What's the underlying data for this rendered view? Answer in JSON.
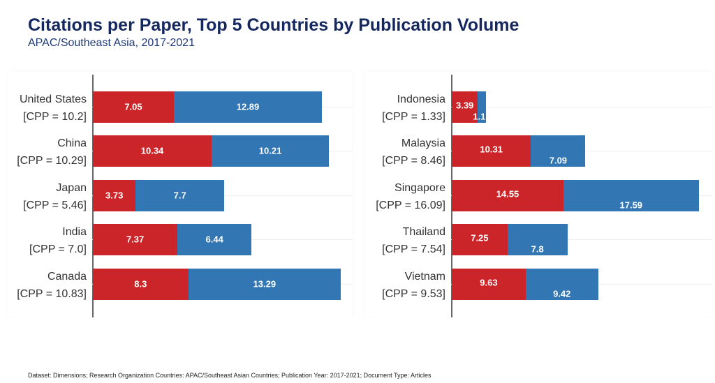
{
  "chart_data": [
    {
      "type": "bar",
      "stacked": true,
      "orientation": "horizontal",
      "panel": "left",
      "categories": [
        "United States",
        "China",
        "Japan",
        "India",
        "Canada"
      ],
      "cpp_labels": [
        "[CPP = 10.2]",
        "[CPP = 10.29]",
        "[CPP = 5.46]",
        "[CPP = 7.0]",
        "[CPP = 10.83]"
      ],
      "series": [
        {
          "name": "red",
          "color": "#cc2529",
          "values": [
            7.05,
            10.34,
            3.73,
            7.37,
            8.3
          ]
        },
        {
          "name": "blue",
          "color": "#3277b4",
          "values": [
            12.89,
            10.21,
            7.7,
            6.44,
            13.29
          ]
        }
      ]
    },
    {
      "type": "bar",
      "stacked": true,
      "orientation": "horizontal",
      "panel": "right",
      "categories": [
        "Indonesia",
        "Malaysia",
        "Singapore",
        "Thailand",
        "Vietnam"
      ],
      "cpp_labels": [
        "[CPP = 1.33]",
        "[CPP = 8.46]",
        "[CPP = 16.09]",
        "[CPP = 7.54]",
        "[CPP = 9.53]"
      ],
      "series": [
        {
          "name": "red",
          "color": "#cc2529",
          "values": [
            3.39,
            10.31,
            14.55,
            7.25,
            9.63
          ]
        },
        {
          "name": "blue",
          "color": "#3277b4",
          "values": [
            1.1,
            7.09,
            17.59,
            7.8,
            9.42
          ]
        }
      ]
    }
  ],
  "title": "Citations per Paper, Top 5 Countries by Publication Volume",
  "subtitle": "APAC/Southeast Asia, 2017-2021",
  "footer": "Dataset: Dimensions; Research Organization Countries: APAC/Southeast Asian Countries; Publication Year: 2017-2021; Document Type: Articles"
}
